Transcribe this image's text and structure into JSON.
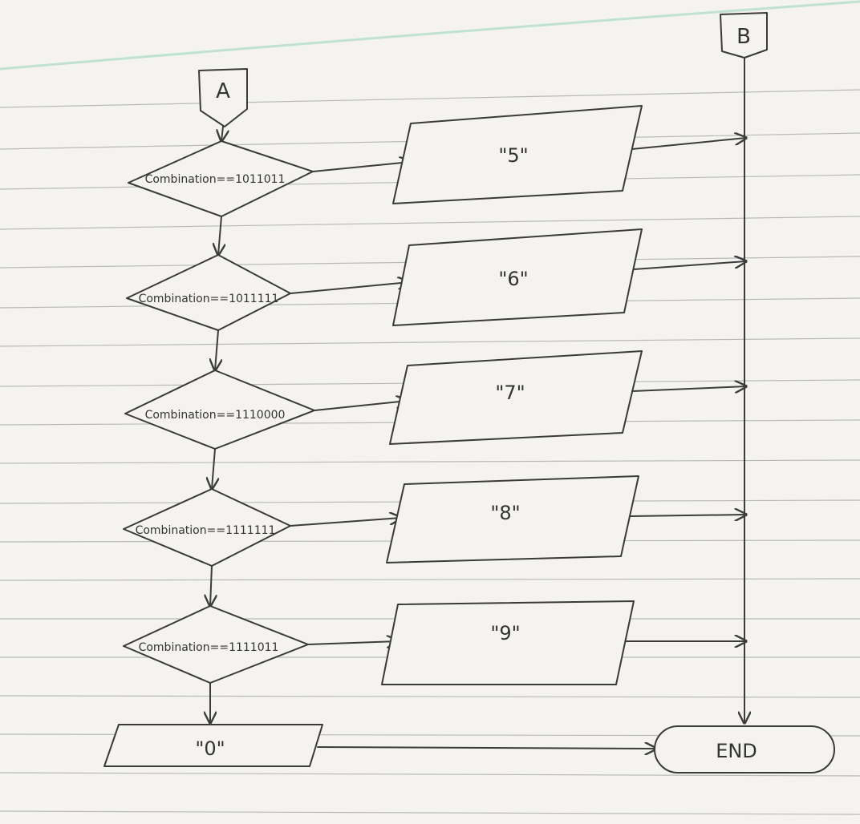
{
  "connectors": {
    "start": "A",
    "merge": "B"
  },
  "decisions": [
    {
      "condition": "Combination==1011011",
      "output": "\"5\""
    },
    {
      "condition": "Combination==1011111",
      "output": "\"6\""
    },
    {
      "condition": "Combination==1110000",
      "output": "\"7\""
    },
    {
      "condition": "Combination==1111111",
      "output": "\"8\""
    },
    {
      "condition": "Combination==1111011",
      "output": "\"9\""
    }
  ],
  "default_output": "\"0\"",
  "terminator": "END",
  "colors": {
    "paper": "#f4f3ef",
    "ink": "#3a3a3a",
    "rule_line": "#b9b9bd",
    "top_margin": "#bfe3d0"
  }
}
